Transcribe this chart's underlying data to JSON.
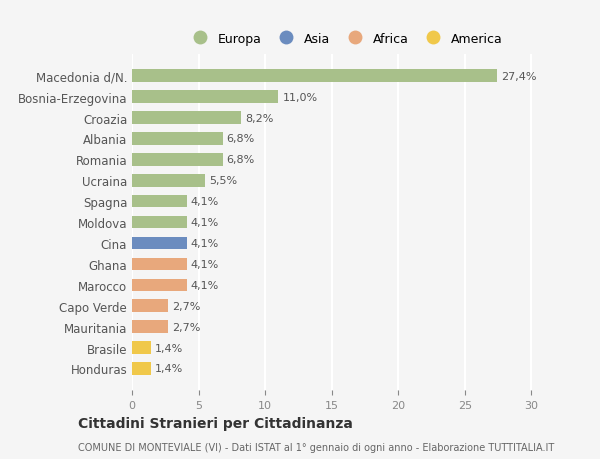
{
  "countries": [
    "Macedonia d/N.",
    "Bosnia-Erzegovina",
    "Croazia",
    "Albania",
    "Romania",
    "Ucraina",
    "Spagna",
    "Moldova",
    "Cina",
    "Ghana",
    "Marocco",
    "Capo Verde",
    "Mauritania",
    "Brasile",
    "Honduras"
  ],
  "values": [
    27.4,
    11.0,
    8.2,
    6.8,
    6.8,
    5.5,
    4.1,
    4.1,
    4.1,
    4.1,
    4.1,
    2.7,
    2.7,
    1.4,
    1.4
  ],
  "labels": [
    "27,4%",
    "11,0%",
    "8,2%",
    "6,8%",
    "6,8%",
    "5,5%",
    "4,1%",
    "4,1%",
    "4,1%",
    "4,1%",
    "4,1%",
    "2,7%",
    "2,7%",
    "1,4%",
    "1,4%"
  ],
  "categories": [
    "Europa",
    "Europa",
    "Europa",
    "Europa",
    "Europa",
    "Europa",
    "Europa",
    "Europa",
    "Asia",
    "Africa",
    "Africa",
    "Africa",
    "Africa",
    "America",
    "America"
  ],
  "colors": {
    "Europa": "#a8c08a",
    "Asia": "#6b8cbf",
    "Africa": "#e8a87c",
    "America": "#f0c84a"
  },
  "legend_order": [
    "Europa",
    "Asia",
    "Africa",
    "America"
  ],
  "title": "Cittadini Stranieri per Cittadinanza",
  "subtitle": "COMUNE DI MONTEVIALE (VI) - Dati ISTAT al 1° gennaio di ogni anno - Elaborazione TUTTITALIA.IT",
  "xlim": [
    0,
    32
  ],
  "xticks": [
    0,
    5,
    10,
    15,
    20,
    25,
    30
  ],
  "background_color": "#f5f5f5",
  "grid_color": "#ffffff",
  "bar_height": 0.6
}
